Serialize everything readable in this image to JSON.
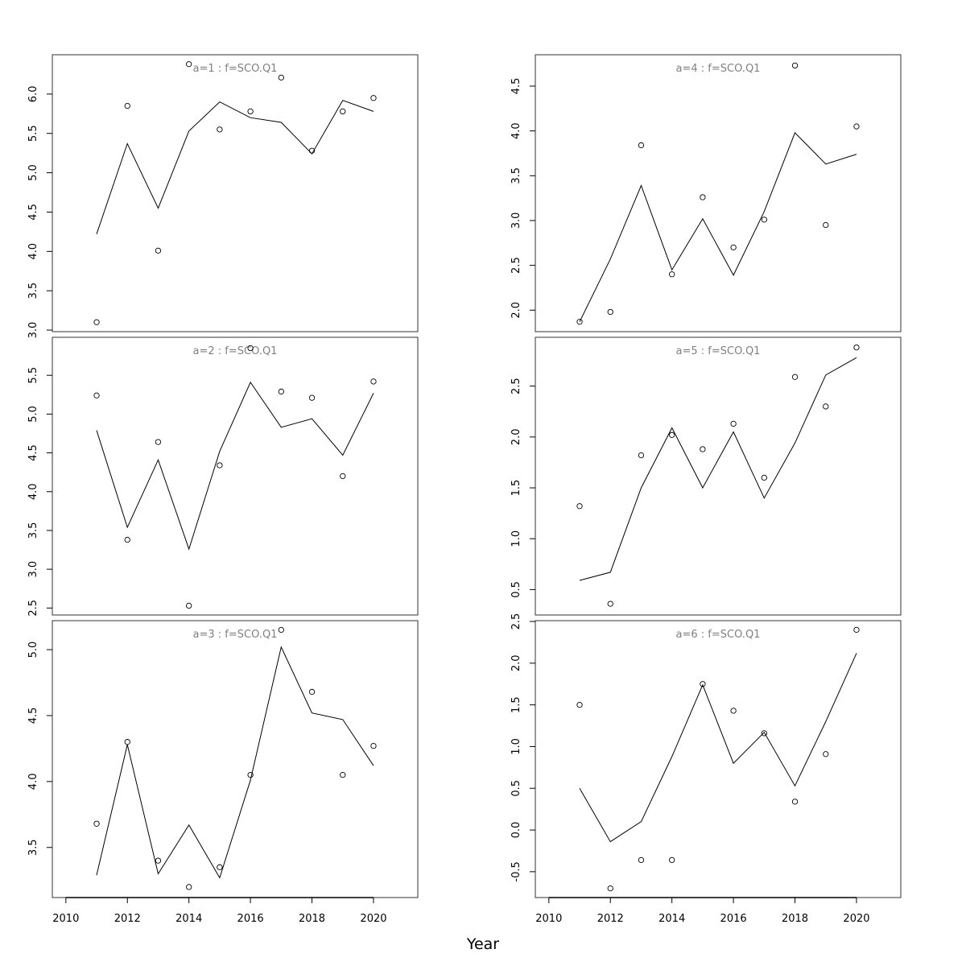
{
  "chart_data": {
    "type": "scatter",
    "xlabel": "Year",
    "x": [
      2011,
      2012,
      2013,
      2014,
      2015,
      2016,
      2017,
      2018,
      2019,
      2020
    ],
    "xlim": [
      2009.56,
      2021.44
    ],
    "xticks": [
      2010,
      2012,
      2014,
      2016,
      2018,
      2020
    ],
    "panels": [
      {
        "title": "a=1  :  f=SCO.Q1",
        "ylim": [
          2.98,
          6.5
        ],
        "yticks": [
          "3.0",
          "3.5",
          "4.0",
          "4.5",
          "5.0",
          "5.5",
          "6.0"
        ],
        "points": [
          3.1,
          5.85,
          4.01,
          6.38,
          5.55,
          5.78,
          6.21,
          5.28,
          5.78,
          5.95
        ],
        "line": [
          4.22,
          5.37,
          4.55,
          5.53,
          5.9,
          5.7,
          5.64,
          5.24,
          5.92,
          5.78
        ]
      },
      {
        "title": "a=4  :  f=SCO.Q1",
        "ylim": [
          1.76,
          4.85
        ],
        "yticks": [
          "2.0",
          "2.5",
          "3.0",
          "3.5",
          "4.0",
          "4.5"
        ],
        "points": [
          1.87,
          1.98,
          3.84,
          2.4,
          3.26,
          2.7,
          3.01,
          4.73,
          2.95,
          4.05
        ],
        "line": [
          1.87,
          2.57,
          3.39,
          2.45,
          3.02,
          2.39,
          3.1,
          3.98,
          3.63,
          3.74
        ]
      },
      {
        "title": "a=2  :  f=SCO.Q1",
        "ylim": [
          2.41,
          5.99
        ],
        "yticks": [
          "2.5",
          "3.0",
          "3.5",
          "4.0",
          "4.5",
          "5.0",
          "5.5"
        ],
        "points": [
          5.24,
          3.38,
          4.64,
          2.53,
          4.34,
          5.85,
          5.29,
          5.21,
          4.2,
          5.42
        ],
        "line": [
          4.79,
          3.54,
          4.41,
          3.26,
          4.52,
          5.41,
          4.83,
          4.94,
          4.47,
          5.27
        ]
      },
      {
        "title": "a=5  :  f=SCO.Q1",
        "ylim": [
          0.25,
          2.98
        ],
        "yticks": [
          "0.5",
          "1.0",
          "1.5",
          "2.0",
          "2.5"
        ],
        "points": [
          1.32,
          0.36,
          1.82,
          2.02,
          1.88,
          2.13,
          1.6,
          2.59,
          2.3,
          2.88
        ],
        "line": [
          0.59,
          0.67,
          1.5,
          2.09,
          1.5,
          2.05,
          1.4,
          1.94,
          2.61,
          2.78
        ]
      },
      {
        "title": "a=3  :  f=SCO.Q1",
        "ylim": [
          3.12,
          5.22
        ],
        "yticks": [
          "3.5",
          "4.0",
          "4.5",
          "5.0"
        ],
        "points": [
          3.68,
          4.3,
          3.4,
          3.2,
          3.35,
          4.05,
          5.15,
          4.68,
          4.05,
          4.27
        ],
        "line": [
          3.29,
          4.28,
          3.3,
          3.67,
          3.27,
          4.01,
          5.02,
          4.52,
          4.47,
          4.12
        ]
      },
      {
        "title": "a=6  :  f=SCO.Q1",
        "ylim": [
          -0.81,
          2.51
        ],
        "yticks": [
          "-0.5",
          "0.0",
          "0.5",
          "1.0",
          "1.5",
          "2.0",
          "2.5"
        ],
        "points": [
          1.5,
          -0.7,
          -0.36,
          -0.36,
          1.75,
          1.43,
          1.16,
          0.34,
          0.91,
          2.4
        ],
        "line": [
          0.5,
          -0.14,
          0.1,
          0.88,
          1.74,
          0.8,
          1.17,
          0.53,
          1.3,
          2.12
        ]
      }
    ]
  },
  "colors": {
    "title": "#808080",
    "ink": "#000000"
  }
}
